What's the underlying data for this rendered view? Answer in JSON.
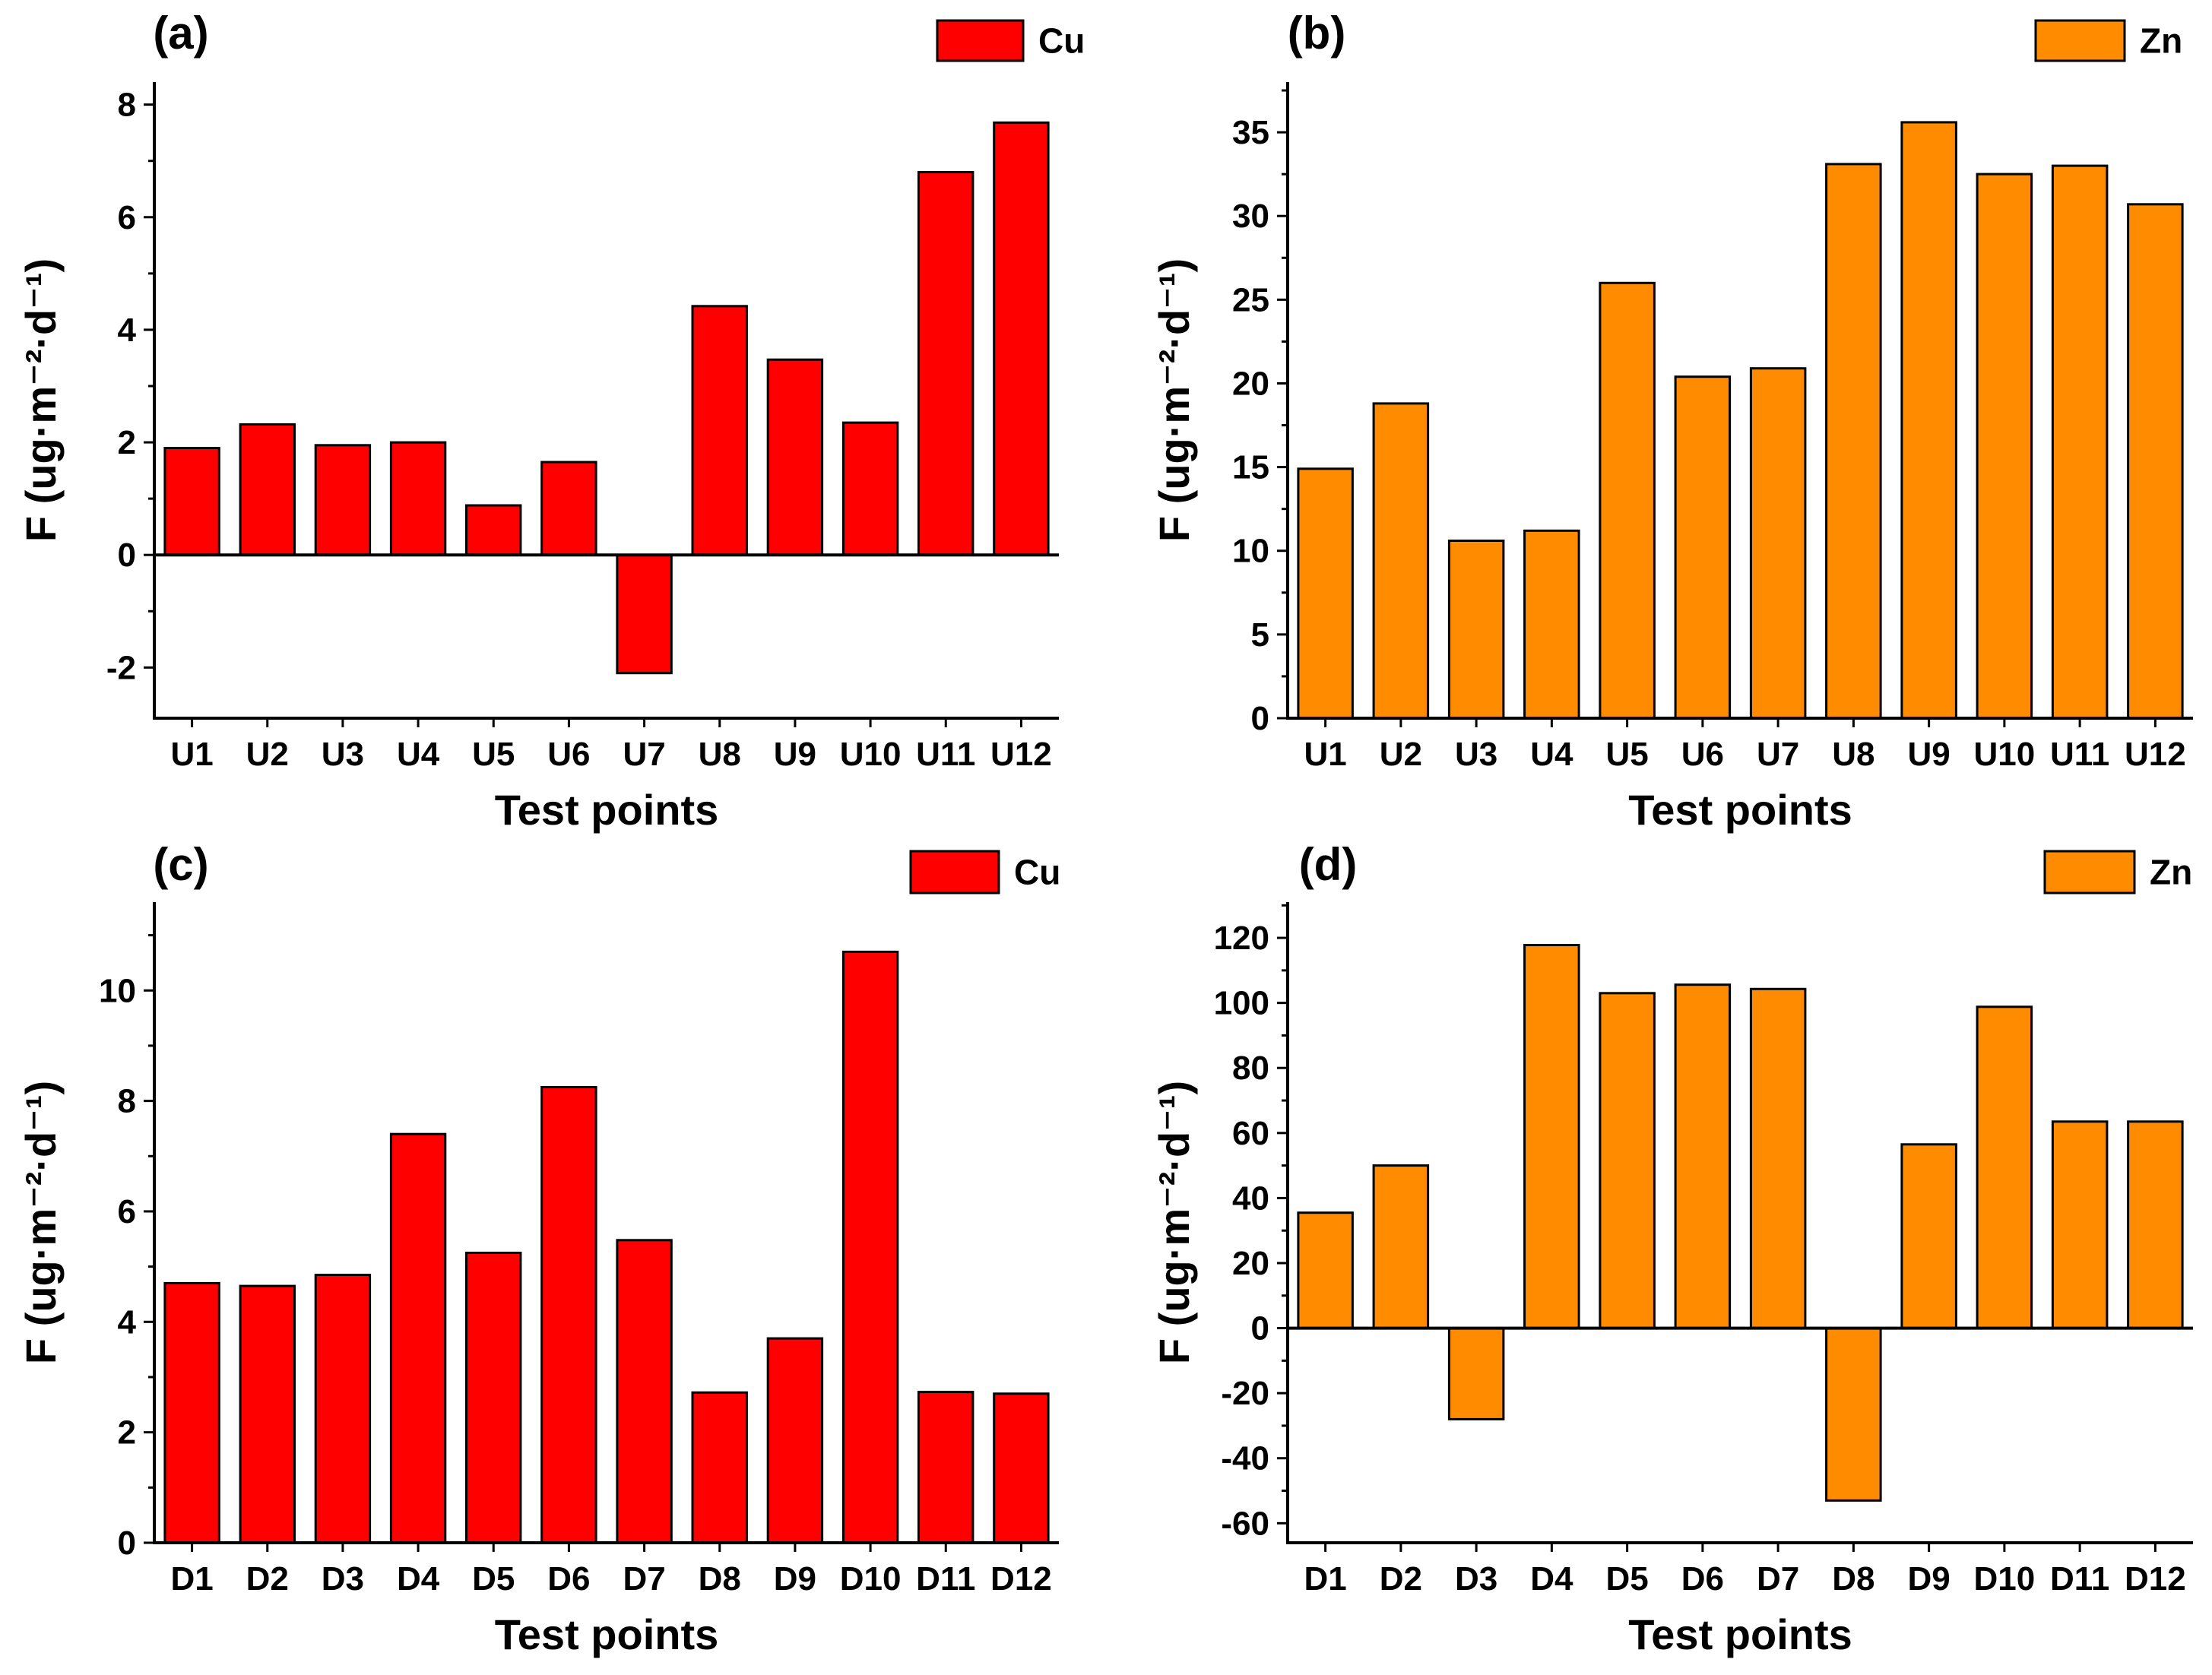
{
  "chart_data": [
    {
      "panel": "(a)",
      "type": "bar",
      "title": "",
      "xlabel": "Test points",
      "ylabel": "F (ug·m⁻²·d⁻¹)",
      "ylim": [
        -2.9,
        8.4
      ],
      "yticks_major": [
        -2,
        0,
        2,
        4,
        6,
        8
      ],
      "yticks_minor": [
        -1,
        1,
        3,
        5,
        7
      ],
      "categories": [
        "U1",
        "U2",
        "U3",
        "U4",
        "U5",
        "U6",
        "U7",
        "U8",
        "U9",
        "U10",
        "U11",
        "U12"
      ],
      "series": [
        {
          "name": "Cu",
          "color": "#ff0000",
          "values": [
            1.9,
            2.32,
            1.95,
            2.0,
            0.88,
            1.65,
            -2.1,
            4.42,
            3.47,
            2.35,
            6.8,
            7.68
          ]
        }
      ],
      "legend": "top-right"
    },
    {
      "panel": "(b)",
      "type": "bar",
      "title": "",
      "xlabel": "Test points",
      "ylabel": "F (ug·m⁻²·d⁻¹)",
      "ylim": [
        0,
        38
      ],
      "yticks_major": [
        0,
        5,
        10,
        15,
        20,
        25,
        30,
        35
      ],
      "yticks_minor": [
        2.5,
        7.5,
        12.5,
        17.5,
        22.5,
        27.5,
        32.5,
        37.5
      ],
      "categories": [
        "U1",
        "U2",
        "U3",
        "U4",
        "U5",
        "U6",
        "U7",
        "U8",
        "U9",
        "U10",
        "U11",
        "U12"
      ],
      "series": [
        {
          "name": "Zn",
          "color": "#ff8c00",
          "values": [
            14.9,
            18.8,
            10.6,
            11.2,
            26.0,
            20.4,
            20.9,
            33.1,
            35.6,
            32.5,
            33.0,
            30.7
          ]
        }
      ],
      "legend": "top-right"
    },
    {
      "panel": "(c)",
      "type": "bar",
      "title": "",
      "xlabel": "Test points",
      "ylabel": "F (ug·m⁻²·d⁻¹)",
      "ylim": [
        0,
        11.6
      ],
      "yticks_major": [
        0,
        2,
        4,
        6,
        8,
        10
      ],
      "yticks_minor": [
        1,
        3,
        5,
        7,
        9,
        11
      ],
      "categories": [
        "D1",
        "D2",
        "D3",
        "D4",
        "D5",
        "D6",
        "D7",
        "D8",
        "D9",
        "D10",
        "D11",
        "D12"
      ],
      "series": [
        {
          "name": "Cu",
          "color": "#ff0000",
          "values": [
            4.7,
            4.65,
            4.85,
            7.4,
            5.25,
            8.25,
            5.48,
            2.72,
            3.7,
            10.7,
            2.73,
            2.7
          ]
        }
      ],
      "legend": "top-right"
    },
    {
      "panel": "(d)",
      "type": "bar",
      "title": "",
      "xlabel": "Test points",
      "ylabel": "F (ug·m⁻²·d⁻¹)",
      "ylim": [
        -66,
        131
      ],
      "yticks_major": [
        -60,
        -40,
        -20,
        0,
        20,
        40,
        60,
        80,
        100,
        120
      ],
      "yticks_minor": [
        -50,
        -30,
        -10,
        10,
        30,
        50,
        70,
        90,
        110,
        130
      ],
      "categories": [
        "D1",
        "D2",
        "D3",
        "D4",
        "D5",
        "D6",
        "D7",
        "D8",
        "D9",
        "D10",
        "D11",
        "D12"
      ],
      "series": [
        {
          "name": "Zn",
          "color": "#ff8c00",
          "values": [
            35.5,
            50.0,
            -28.0,
            117.8,
            103.0,
            105.6,
            104.3,
            -53.0,
            56.5,
            98.8,
            63.5,
            63.5
          ]
        }
      ],
      "legend": "top-right"
    }
  ]
}
